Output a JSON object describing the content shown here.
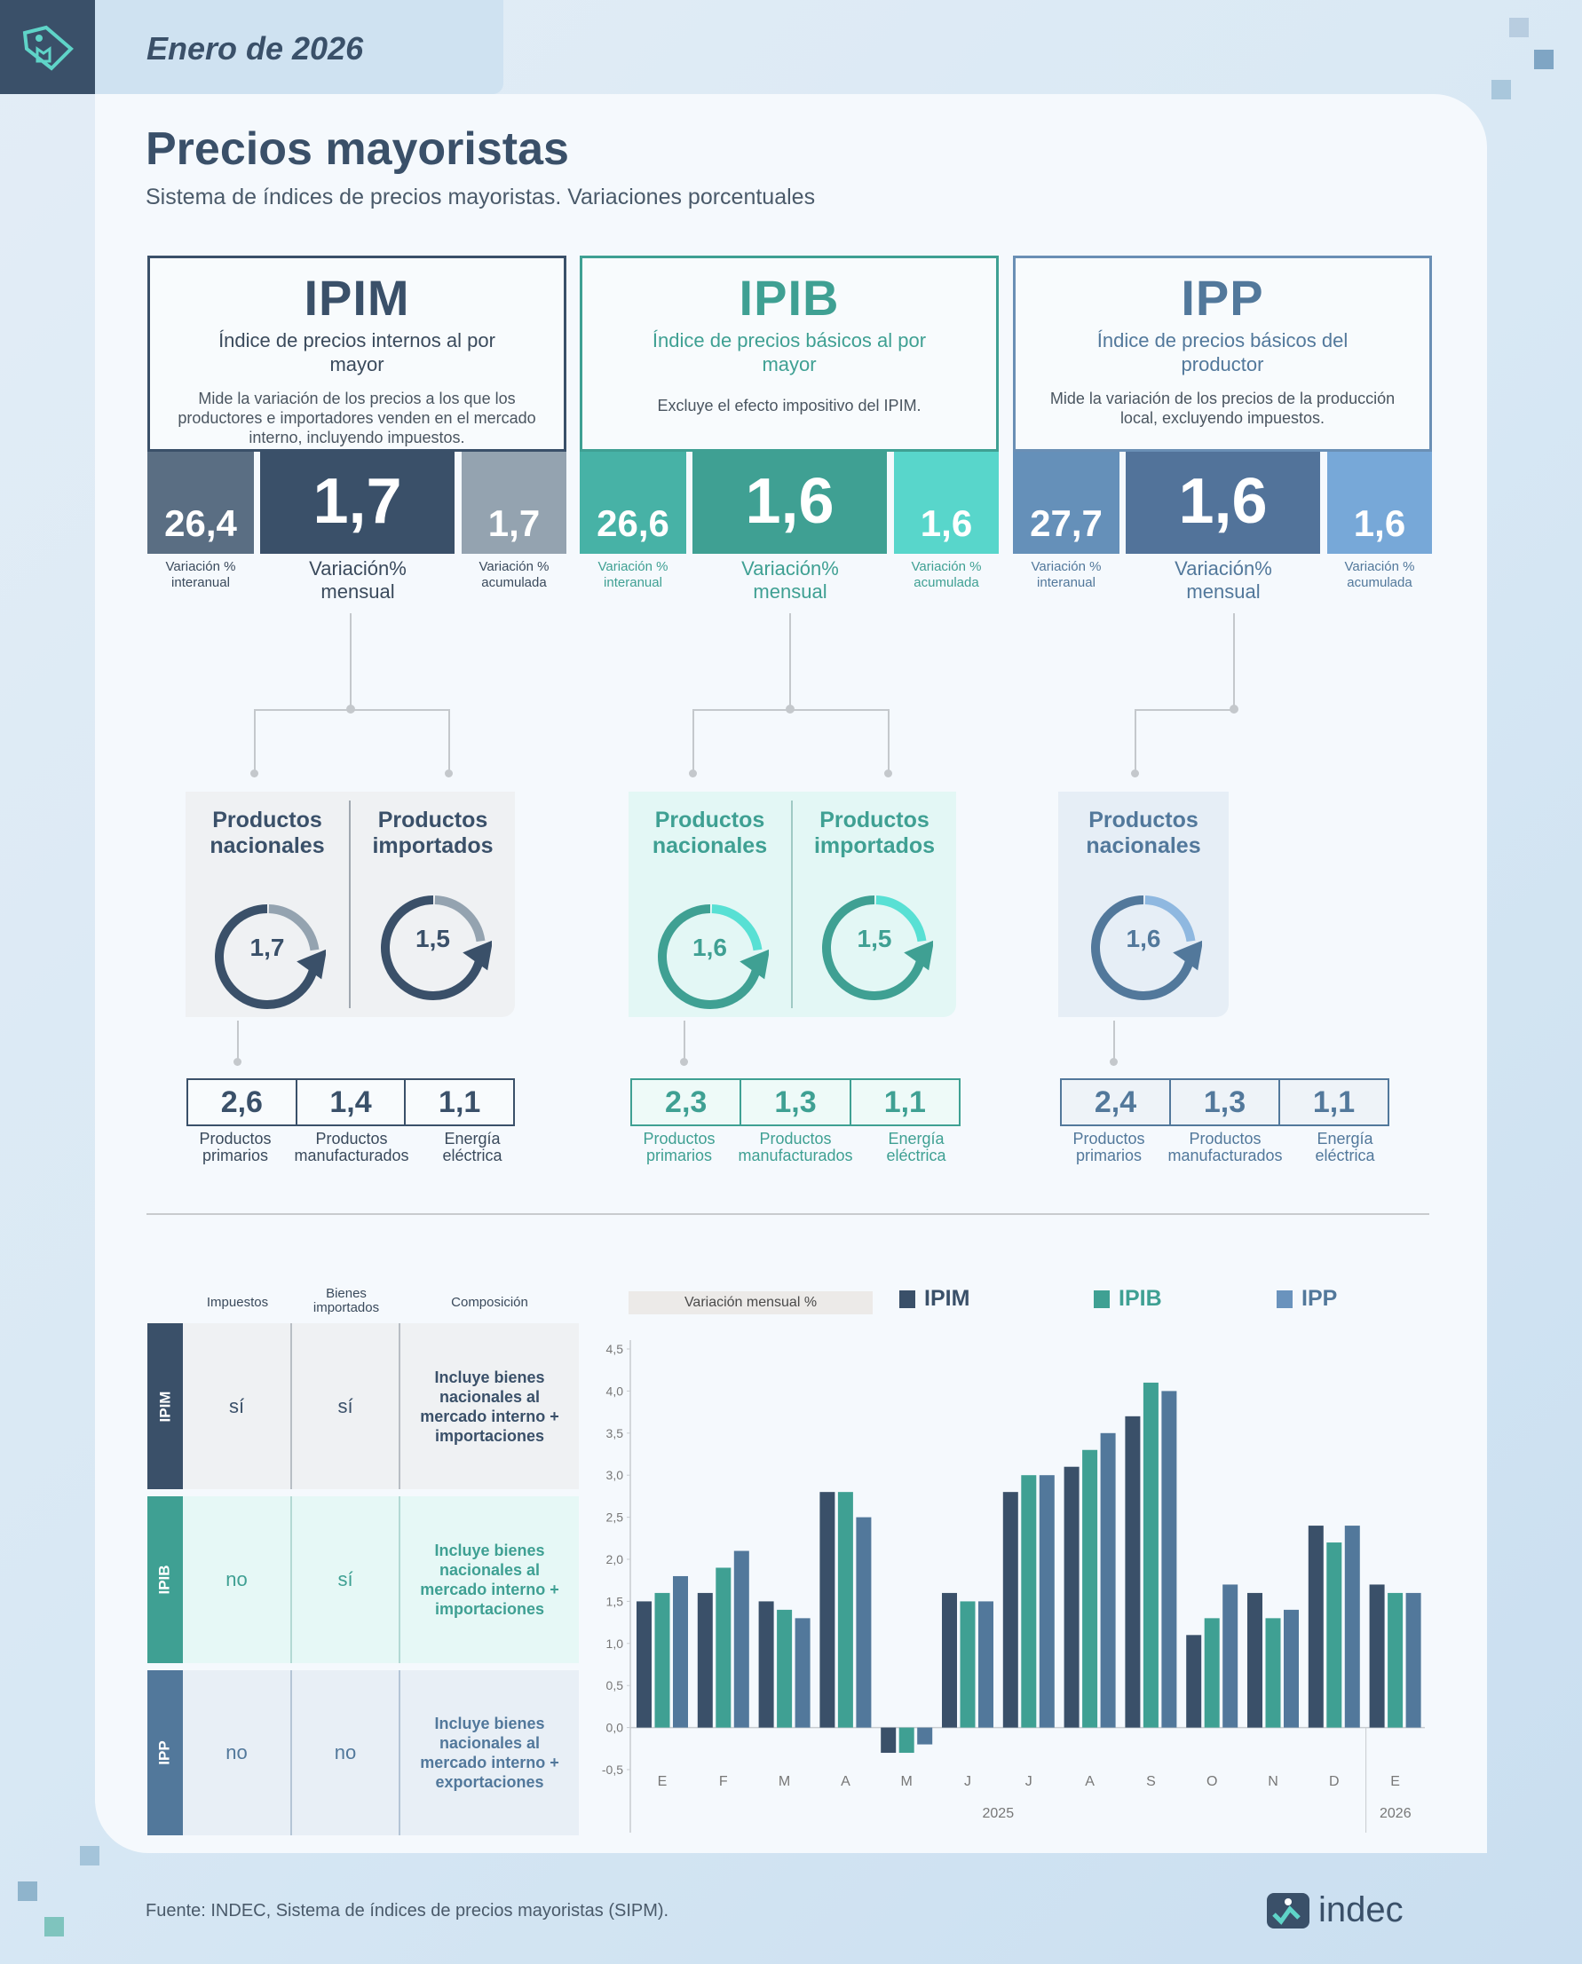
{
  "header": {
    "date": "Enero de 2026"
  },
  "title": "Precios mayoristas",
  "subtitle": "Sistema de índices de precios mayoristas. Variaciones porcentuales",
  "colors": {
    "ipim": "#3a5069",
    "ipib": "#3fa093",
    "ipp": "#52789b"
  },
  "indices": [
    {
      "code": "IPIM",
      "name": "Índice de precios internos al por mayor",
      "desc": "Mide la variación de los precios a los que los productores e importadores venden en el mercado interno, incluyendo impuestos.",
      "interanual": "26,4",
      "mensual": "1,7",
      "acumulada": "1,7",
      "lab_interanual": "Variación % interanual",
      "lab_mensual": "Variación% mensual",
      "lab_acumulada": "Variación % acumulada",
      "panels": [
        {
          "label": "Productos nacionales",
          "value": "1,7"
        },
        {
          "label": "Productos importados",
          "value": "1,5"
        }
      ],
      "breakdown": [
        {
          "value": "2,6",
          "label": "Productos primarios"
        },
        {
          "value": "1,4",
          "label": "Productos manufacturados"
        },
        {
          "value": "1,1",
          "label": "Energía eléctrica"
        }
      ]
    },
    {
      "code": "IPIB",
      "name": "Índice de precios básicos al por mayor",
      "desc": "Excluye el efecto impositivo del IPIM.",
      "interanual": "26,6",
      "mensual": "1,6",
      "acumulada": "1,6",
      "lab_interanual": "Variación % interanual",
      "lab_mensual": "Variación% mensual",
      "lab_acumulada": "Variación % acumulada",
      "panels": [
        {
          "label": "Productos nacionales",
          "value": "1,6"
        },
        {
          "label": "Productos importados",
          "value": "1,5"
        }
      ],
      "breakdown": [
        {
          "value": "2,3",
          "label": "Productos primarios"
        },
        {
          "value": "1,3",
          "label": "Productos manufacturados"
        },
        {
          "value": "1,1",
          "label": "Energía eléctrica"
        }
      ]
    },
    {
      "code": "IPP",
      "name": "Índice de precios básicos del productor",
      "desc": "Mide la variación de los precios de la producción local, excluyendo impuestos.",
      "interanual": "27,7",
      "mensual": "1,6",
      "acumulada": "1,6",
      "lab_interanual": "Variación % interanual",
      "lab_mensual": "Variación% mensual",
      "lab_acumulada": "Variación % acumulada",
      "panels": [
        {
          "label": "Productos nacionales",
          "value": "1,6"
        }
      ],
      "breakdown": [
        {
          "value": "2,4",
          "label": "Productos primarios"
        },
        {
          "value": "1,3",
          "label": "Productos manufacturados"
        },
        {
          "value": "1,1",
          "label": "Energía eléctrica"
        }
      ]
    }
  ],
  "table": {
    "headers": [
      "Impuestos",
      "Bienes importados",
      "Composición"
    ],
    "rows": [
      {
        "label": "IPIM",
        "impuestos": "sí",
        "importados": "sí",
        "composicion": "Incluye bienes nacionales al mercado interno + importaciones"
      },
      {
        "label": "IPIB",
        "impuestos": "no",
        "importados": "sí",
        "composicion": "Incluye bienes nacionales al mercado interno + importaciones"
      },
      {
        "label": "IPP",
        "impuestos": "no",
        "importados": "no",
        "composicion": "Incluye bienes nacionales al mercado interno + exportaciones"
      }
    ]
  },
  "chart_data": {
    "type": "bar",
    "title": "Variación mensual %",
    "ylim": [
      -0.5,
      4.5
    ],
    "yticks": [
      "4,5",
      "4,0",
      "3,5",
      "3,0",
      "2,5",
      "2,0",
      "1,5",
      "1,0",
      "0,5",
      "0,0",
      "-0,5"
    ],
    "categories": [
      "E",
      "F",
      "M",
      "A",
      "M",
      "J",
      "J",
      "A",
      "S",
      "O",
      "N",
      "D",
      "E"
    ],
    "years": [
      "2025",
      "2026"
    ],
    "legend": "top",
    "series": [
      {
        "name": "IPIM",
        "color": "#3a5069",
        "values": [
          1.5,
          1.6,
          1.5,
          2.8,
          -0.3,
          1.6,
          2.8,
          3.1,
          3.7,
          1.1,
          1.6,
          2.4,
          1.7
        ]
      },
      {
        "name": "IPIB",
        "color": "#3fa093",
        "values": [
          1.6,
          1.9,
          1.4,
          2.8,
          -0.3,
          1.5,
          3.0,
          3.3,
          4.1,
          1.3,
          1.3,
          2.2,
          1.6
        ]
      },
      {
        "name": "IPP",
        "color": "#52789b",
        "values": [
          1.8,
          2.1,
          1.3,
          2.5,
          -0.2,
          1.5,
          3.0,
          3.5,
          4.0,
          1.7,
          1.4,
          2.4,
          1.6
        ]
      }
    ]
  },
  "footer": "Fuente: INDEC, Sistema de índices de precios mayoristas (SIPM).",
  "logo": "indec"
}
